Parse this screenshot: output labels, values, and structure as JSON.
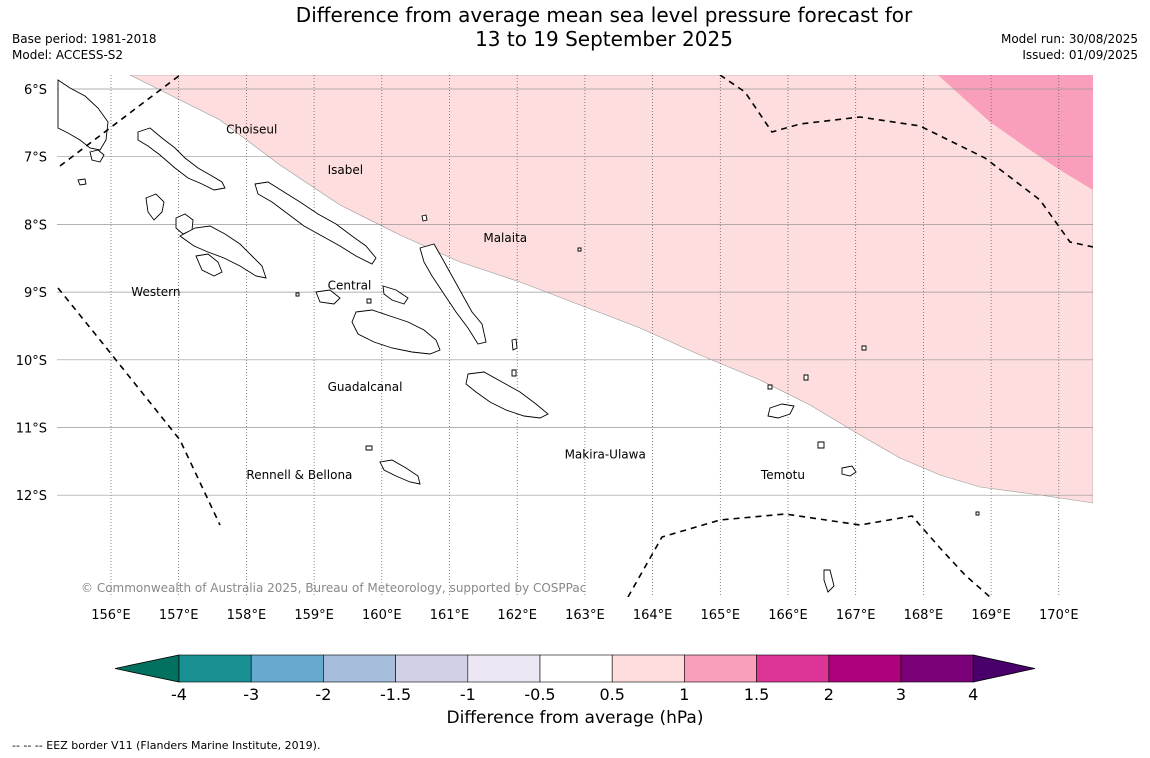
{
  "title": {
    "line1": "Difference from average mean sea level pressure forecast for",
    "line2": "13 to 19 September 2025"
  },
  "meta_left": {
    "base_period": "Base period: 1981-2018",
    "model": "Model: ACCESS-S2"
  },
  "meta_right": {
    "model_run": "Model run: 30/08/2025",
    "issued": "Issued: 01/09/2025"
  },
  "map": {
    "lat_labels": [
      "6°S",
      "7°S",
      "8°S",
      "9°S",
      "10°S",
      "11°S",
      "12°S"
    ],
    "lat_values": [
      -6,
      -7,
      -8,
      -9,
      -10,
      -11,
      -12
    ],
    "lon_labels": [
      "156°E",
      "157°E",
      "158°E",
      "159°E",
      "160°E",
      "161°E",
      "162°E",
      "163°E",
      "164°E",
      "165°E",
      "166°E",
      "167°E",
      "168°E",
      "169°E",
      "170°E"
    ],
    "lon_values": [
      156,
      157,
      158,
      159,
      160,
      161,
      162,
      163,
      164,
      165,
      166,
      167,
      168,
      169,
      170
    ],
    "extent": {
      "lon_min": 155.3,
      "lon_max": 170.5,
      "lat_min": -13.5,
      "lat_max": -5.8
    },
    "places": [
      {
        "name": "Choiseul",
        "lon": 157.7,
        "lat": -6.6
      },
      {
        "name": "Isabel",
        "lon": 159.2,
        "lat": -7.2
      },
      {
        "name": "Malaita",
        "lon": 161.5,
        "lat": -8.2
      },
      {
        "name": "Western",
        "lon": 156.3,
        "lat": -9.0
      },
      {
        "name": "Central",
        "lon": 159.2,
        "lat": -8.9
      },
      {
        "name": "Guadalcanal",
        "lon": 159.2,
        "lat": -10.4
      },
      {
        "name": "Makira-Ulawa",
        "lon": 162.7,
        "lat": -11.4
      },
      {
        "name": "Rennell & Bellona",
        "lon": 158.0,
        "lat": -11.7
      },
      {
        "name": "Temotu",
        "lon": 165.6,
        "lat": -11.7
      }
    ],
    "copyright": "© Commonwealth of Australia 2025, Bureau of Meteorology, supported by COSPPac",
    "shading_colors": {
      "band_0_5_to_1": "#fddddd",
      "band_1_to_1_5": "#f99fbb"
    }
  },
  "colorbar": {
    "tick_labels": [
      "-4",
      "-3",
      "-2",
      "-1.5",
      "-1",
      "-0.5",
      "0.5",
      "1",
      "1.5",
      "2",
      "3",
      "4"
    ],
    "colors": [
      "#1a9092",
      "#67a9cf",
      "#a6bddb",
      "#d0d1e6",
      "#ece7f2",
      "#ffffff",
      "#fddddd",
      "#f99fbb",
      "#dd3497",
      "#ae017e",
      "#7a0177"
    ],
    "under_color": "#02715f",
    "over_color": "#49006a",
    "title": "Difference from average (hPa)"
  },
  "eez_note": "--  --  -- EEZ border V11 (Flanders Marine Institute, 2019)."
}
